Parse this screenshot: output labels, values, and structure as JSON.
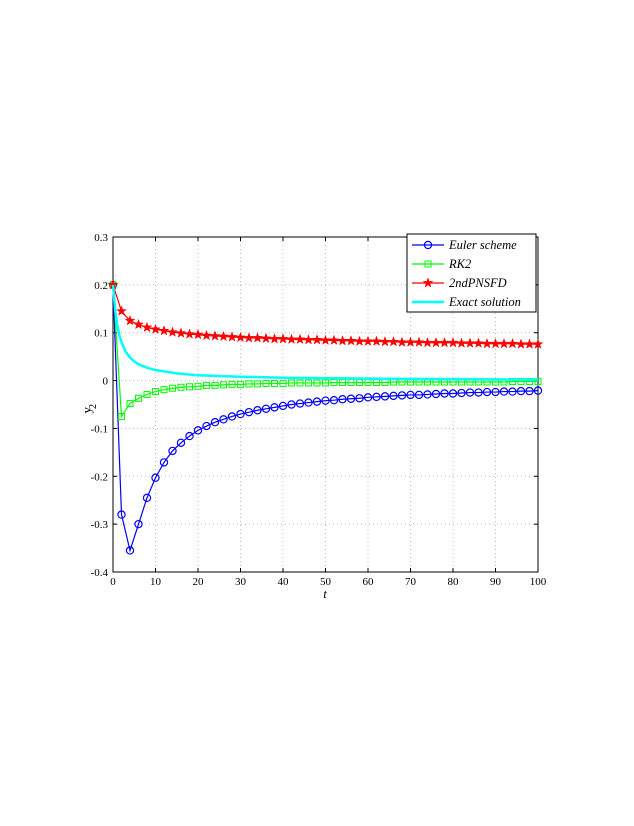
{
  "chart_data": {
    "type": "line",
    "xlabel": "t",
    "ylabel": "y",
    "ylabel_subscript": "2",
    "xlim": [
      0,
      100
    ],
    "ylim": [
      -0.4,
      0.3
    ],
    "xticks": [
      0,
      10,
      20,
      30,
      40,
      50,
      60,
      70,
      80,
      90,
      100
    ],
    "yticks": [
      -0.4,
      -0.3,
      -0.2,
      -0.1,
      0,
      0.1,
      0.2,
      0.3
    ],
    "grid": true,
    "legend": "upper right",
    "x": [
      0,
      2,
      4,
      6,
      8,
      10,
      12,
      14,
      16,
      18,
      20,
      22,
      24,
      26,
      28,
      30,
      32,
      34,
      36,
      38,
      40,
      42,
      44,
      46,
      48,
      50,
      52,
      54,
      56,
      58,
      60,
      62,
      64,
      66,
      68,
      70,
      72,
      74,
      76,
      78,
      80,
      82,
      84,
      86,
      88,
      90,
      92,
      94,
      96,
      98,
      100
    ],
    "series": [
      {
        "name": "Euler scheme",
        "color": "#0000ff",
        "marker": "circle",
        "values": [
          0.2,
          -0.28,
          -0.355,
          -0.3,
          -0.245,
          -0.203,
          -0.171,
          -0.147,
          -0.13,
          -0.116,
          -0.104,
          -0.095,
          -0.087,
          -0.081,
          -0.075,
          -0.07,
          -0.066,
          -0.062,
          -0.059,
          -0.056,
          -0.053,
          -0.05,
          -0.048,
          -0.046,
          -0.044,
          -0.042,
          -0.041,
          -0.039,
          -0.038,
          -0.037,
          -0.035,
          -0.034,
          -0.033,
          -0.032,
          -0.031,
          -0.03,
          -0.03,
          -0.029,
          -0.028,
          -0.027,
          -0.027,
          -0.026,
          -0.025,
          -0.025,
          -0.024,
          -0.024,
          -0.023,
          -0.023,
          -0.022,
          -0.022,
          -0.021
        ]
      },
      {
        "name": "RK2",
        "color": "#00ff00",
        "marker": "square",
        "values": [
          0.2,
          -0.075,
          -0.048,
          -0.037,
          -0.029,
          -0.023,
          -0.019,
          -0.016,
          -0.014,
          -0.013,
          -0.012,
          -0.01,
          -0.01,
          -0.009,
          -0.008,
          -0.008,
          -0.007,
          -0.007,
          -0.006,
          -0.006,
          -0.006,
          -0.005,
          -0.005,
          -0.005,
          -0.005,
          -0.005,
          -0.004,
          -0.004,
          -0.004,
          -0.004,
          -0.004,
          -0.004,
          -0.004,
          -0.003,
          -0.003,
          -0.003,
          -0.003,
          -0.003,
          -0.003,
          -0.003,
          -0.003,
          -0.003,
          -0.003,
          -0.003,
          -0.003,
          -0.003,
          -0.003,
          -0.002,
          -0.002,
          -0.002,
          -0.002
        ]
      },
      {
        "name": "2ndPNSFD",
        "color": "#ff0000",
        "marker": "star",
        "values": [
          0.2,
          0.145,
          0.125,
          0.117,
          0.111,
          0.107,
          0.104,
          0.101,
          0.099,
          0.097,
          0.096,
          0.094,
          0.093,
          0.092,
          0.091,
          0.09,
          0.089,
          0.089,
          0.088,
          0.087,
          0.087,
          0.086,
          0.086,
          0.085,
          0.085,
          0.084,
          0.084,
          0.083,
          0.083,
          0.082,
          0.082,
          0.082,
          0.081,
          0.081,
          0.08,
          0.08,
          0.08,
          0.079,
          0.079,
          0.079,
          0.079,
          0.078,
          0.078,
          0.078,
          0.077,
          0.077,
          0.077,
          0.077,
          0.076,
          0.076,
          0.076
        ]
      },
      {
        "name": "Exact solution",
        "color": "#00ffff",
        "marker": "none",
        "x": [
          0,
          0.5,
          1,
          1.5,
          2,
          3,
          4,
          5,
          6,
          8,
          10,
          15,
          20,
          30,
          40,
          60,
          80,
          100
        ],
        "values": [
          0.2,
          0.15,
          0.115,
          0.095,
          0.08,
          0.06,
          0.048,
          0.04,
          0.034,
          0.027,
          0.022,
          0.015,
          0.011,
          0.008,
          0.006,
          0.004,
          0.003,
          0.002
        ]
      }
    ]
  }
}
